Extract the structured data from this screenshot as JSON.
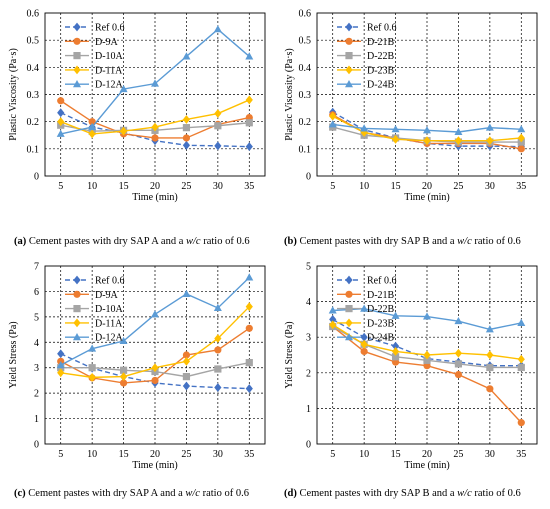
{
  "chart_data": [
    {
      "type": "line",
      "caption_letter": "(a)",
      "caption_text": " Cement pastes with dry SAP A and a ",
      "caption_italic": "w/c",
      "caption_suffix": " ratio of 0.6",
      "xlabel": "Time (min)",
      "ylabel": "Plastic Viscosity (Pa·s)",
      "x": [
        5,
        10,
        15,
        20,
        25,
        30,
        35
      ],
      "xlim": [
        2.5,
        37.5
      ],
      "ylim": [
        0,
        0.6
      ],
      "yticks": [
        0,
        0.1,
        0.2,
        0.3,
        0.4,
        0.5,
        0.6
      ],
      "ytick_labels": [
        "0",
        "0.1",
        "0.2",
        "0.3",
        "0.4",
        "0.5",
        "0.6"
      ],
      "legend_position": "top-left",
      "series": [
        {
          "name": "Ref 0.6",
          "color": "#4472C4",
          "marker": "diamond",
          "dashed": true,
          "values": [
            0.233,
            0.18,
            0.158,
            0.13,
            0.113,
            0.111,
            0.108
          ]
        },
        {
          "name": "D-9A",
          "color": "#ED7D31",
          "marker": "circle",
          "dashed": false,
          "values": [
            0.277,
            0.2,
            0.155,
            0.14,
            0.14,
            0.19,
            0.215
          ]
        },
        {
          "name": "D-10A",
          "color": "#A5A5A5",
          "marker": "square",
          "dashed": false,
          "values": [
            0.187,
            0.165,
            0.168,
            0.168,
            0.178,
            0.185,
            0.196
          ]
        },
        {
          "name": "D-11A",
          "color": "#FFC000",
          "marker": "diamond",
          "dashed": false,
          "values": [
            0.2,
            0.155,
            0.165,
            0.18,
            0.208,
            0.23,
            0.28
          ]
        },
        {
          "name": "D-12A",
          "color": "#5B9BD5",
          "marker": "triangle",
          "dashed": false,
          "values": [
            0.155,
            0.18,
            0.32,
            0.34,
            0.44,
            0.54,
            0.44
          ]
        }
      ]
    },
    {
      "type": "line",
      "caption_letter": "(b)",
      "caption_text": " Cement pastes with dry SAP B and a ",
      "caption_italic": "w/c",
      "caption_suffix": " ratio of 0.6",
      "xlabel": "Time (min)",
      "ylabel": "Plastic Viscosity (Pa·s)",
      "x": [
        5,
        10,
        15,
        20,
        25,
        30,
        35
      ],
      "xlim": [
        2.5,
        37.5
      ],
      "ylim": [
        0,
        0.6
      ],
      "yticks": [
        0,
        0.1,
        0.2,
        0.3,
        0.4,
        0.5,
        0.6
      ],
      "ytick_labels": [
        "0",
        "0.1",
        "0.2",
        "0.3",
        "0.4",
        "0.5",
        "0.6"
      ],
      "legend_position": "top-left",
      "series": [
        {
          "name": "Ref 0.6",
          "color": "#4472C4",
          "marker": "diamond",
          "dashed": true,
          "values": [
            0.235,
            0.17,
            0.14,
            0.12,
            0.11,
            0.11,
            0.108
          ]
        },
        {
          "name": "D-21B",
          "color": "#ED7D31",
          "marker": "circle",
          "dashed": false,
          "values": [
            0.225,
            0.16,
            0.14,
            0.12,
            0.12,
            0.12,
            0.1
          ]
        },
        {
          "name": "D-22B",
          "color": "#A5A5A5",
          "marker": "square",
          "dashed": false,
          "values": [
            0.18,
            0.15,
            0.14,
            0.13,
            0.125,
            0.125,
            0.125
          ]
        },
        {
          "name": "D-23B",
          "color": "#FFC000",
          "marker": "diamond",
          "dashed": false,
          "values": [
            0.22,
            0.16,
            0.135,
            0.13,
            0.13,
            0.13,
            0.14
          ]
        },
        {
          "name": "D-24B",
          "color": "#5B9BD5",
          "marker": "triangle",
          "dashed": false,
          "values": [
            0.19,
            0.175,
            0.172,
            0.168,
            0.162,
            0.178,
            0.172
          ]
        }
      ]
    },
    {
      "type": "line",
      "caption_letter": "(c)",
      "caption_text": " Cement pastes with dry SAP A and a ",
      "caption_italic": "w/c",
      "caption_suffix": " ratio of 0.6",
      "xlabel": "Time (min)",
      "ylabel": "Yield Stress (Pa)",
      "x": [
        5,
        10,
        15,
        20,
        25,
        30,
        35
      ],
      "xlim": [
        2.5,
        37.5
      ],
      "ylim": [
        0,
        7
      ],
      "yticks": [
        0,
        1,
        2,
        3,
        4,
        5,
        6,
        7
      ],
      "ytick_labels": [
        "0",
        "1",
        "2",
        "3",
        "4",
        "5",
        "6",
        "7"
      ],
      "legend_position": "top-left",
      "series": [
        {
          "name": "Ref 0.6",
          "color": "#4472C4",
          "marker": "diamond",
          "dashed": true,
          "values": [
            3.55,
            2.98,
            2.65,
            2.4,
            2.28,
            2.22,
            2.18
          ]
        },
        {
          "name": "D-9A",
          "color": "#ED7D31",
          "marker": "circle",
          "dashed": false,
          "values": [
            3.25,
            2.6,
            2.4,
            2.5,
            3.5,
            3.7,
            4.55
          ]
        },
        {
          "name": "D-10A",
          "color": "#A5A5A5",
          "marker": "square",
          "dashed": false,
          "values": [
            3.0,
            3.0,
            2.9,
            2.85,
            2.65,
            2.95,
            3.2
          ]
        },
        {
          "name": "D-11A",
          "color": "#FFC000",
          "marker": "diamond",
          "dashed": false,
          "values": [
            2.8,
            2.62,
            2.65,
            3.0,
            3.25,
            4.15,
            5.4
          ]
        },
        {
          "name": "D-12A",
          "color": "#5B9BD5",
          "marker": "triangle",
          "dashed": false,
          "values": [
            3.1,
            3.75,
            4.05,
            5.1,
            5.9,
            5.35,
            6.55
          ]
        }
      ]
    },
    {
      "type": "line",
      "caption_letter": "(d)",
      "caption_text": " Cement pastes with dry SAP B and a ",
      "caption_italic": "w/c",
      "caption_suffix": " ratio of 0.6",
      "xlabel": "Time (min)",
      "ylabel": "Yield Stress (Pa)",
      "x": [
        5,
        10,
        15,
        20,
        25,
        30,
        35
      ],
      "xlim": [
        2.5,
        37.5
      ],
      "ylim": [
        0,
        5
      ],
      "yticks": [
        0,
        1,
        2,
        3,
        4,
        5
      ],
      "ytick_labels": [
        "0",
        "1",
        "2",
        "3",
        "4",
        "5"
      ],
      "legend_position": "top-left",
      "series": [
        {
          "name": "Ref 0.6",
          "color": "#4472C4",
          "marker": "diamond",
          "dashed": true,
          "values": [
            3.5,
            3.0,
            2.75,
            2.4,
            2.3,
            2.2,
            2.2
          ]
        },
        {
          "name": "D-21B",
          "color": "#ED7D31",
          "marker": "circle",
          "dashed": false,
          "values": [
            3.3,
            2.6,
            2.3,
            2.2,
            1.95,
            1.55,
            0.6
          ]
        },
        {
          "name": "D-22B",
          "color": "#A5A5A5",
          "marker": "square",
          "dashed": false,
          "values": [
            3.3,
            2.8,
            2.45,
            2.35,
            2.25,
            2.15,
            2.15
          ]
        },
        {
          "name": "D-23B",
          "color": "#FFC000",
          "marker": "diamond",
          "dashed": false,
          "values": [
            3.35,
            2.8,
            2.6,
            2.5,
            2.55,
            2.5,
            2.38
          ]
        },
        {
          "name": "D-24B",
          "color": "#5B9BD5",
          "marker": "triangle",
          "dashed": false,
          "values": [
            3.75,
            3.8,
            3.6,
            3.58,
            3.45,
            3.22,
            3.4
          ]
        }
      ]
    }
  ]
}
